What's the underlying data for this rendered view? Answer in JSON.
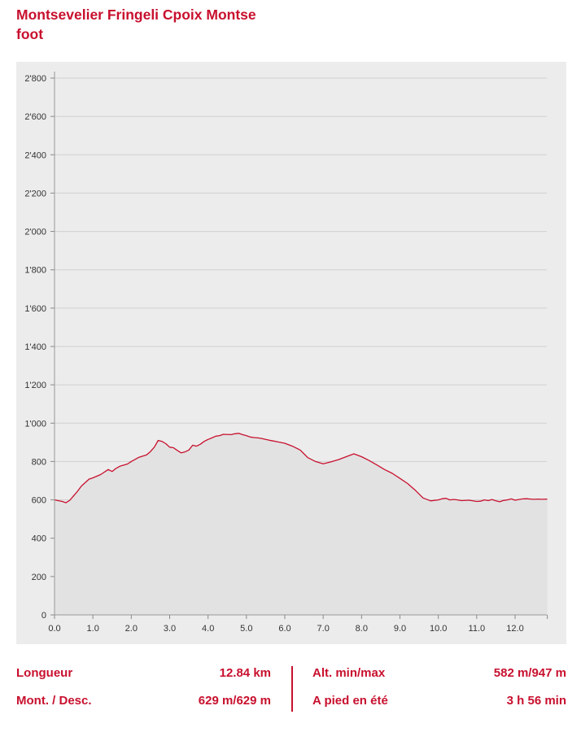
{
  "title": {
    "line1": "Montsevelier Fringeli Cpoix Montse",
    "line2": "foot"
  },
  "colors": {
    "accent": "#c8102e",
    "panel": "#ececec",
    "area_fill": "#e2e2e2",
    "grid": "#d0d0d0"
  },
  "chart_data": {
    "type": "area",
    "xlabel": "",
    "ylabel": "",
    "xlim": [
      0,
      12.84
    ],
    "ylim": [
      0,
      2800
    ],
    "grid": true,
    "x_ticks": [
      "0.0",
      "1.0",
      "2.0",
      "3.0",
      "4.0",
      "5.0",
      "6.0",
      "7.0",
      "8.0",
      "9.0",
      "10.0",
      "11.0",
      "12.0"
    ],
    "y_ticks": [
      "0",
      "200",
      "400",
      "600",
      "800",
      "1'000",
      "1'200",
      "1'400",
      "1'600",
      "1'800",
      "2'000",
      "2'200",
      "2'400",
      "2'600",
      "2'800"
    ],
    "series": [
      {
        "x": [
          0.0,
          0.2,
          0.3,
          0.4,
          0.5,
          0.6,
          0.7,
          0.8,
          0.9,
          1.0,
          1.2,
          1.4,
          1.5,
          1.6,
          1.7,
          1.9,
          2.0,
          2.2,
          2.4,
          2.5,
          2.6,
          2.7,
          2.8,
          2.9,
          3.0,
          3.1,
          3.2,
          3.3,
          3.4,
          3.5,
          3.6,
          3.7,
          3.8,
          3.9,
          4.0,
          4.1,
          4.2,
          4.3,
          4.4,
          4.6,
          4.7,
          4.8,
          4.9,
          5.0,
          5.1,
          5.2,
          5.3,
          5.4,
          5.5,
          5.6,
          5.7,
          5.8,
          6.0,
          6.2,
          6.4,
          6.5,
          6.6,
          6.8,
          7.0,
          7.2,
          7.4,
          7.6,
          7.8,
          8.0,
          8.2,
          8.4,
          8.6,
          8.8,
          9.0,
          9.2,
          9.4,
          9.6,
          9.8,
          10.0,
          10.1,
          10.2,
          10.3,
          10.4,
          10.5,
          10.6,
          10.8,
          11.0,
          11.1,
          11.2,
          11.3,
          11.4,
          11.5,
          11.6,
          11.7,
          11.8,
          11.9,
          12.0,
          12.1,
          12.2,
          12.3,
          12.4,
          12.5,
          12.6,
          12.7,
          12.8,
          12.84
        ],
        "y": [
          600,
          592,
          585,
          598,
          622,
          645,
          672,
          690,
          708,
          715,
          732,
          758,
          748,
          764,
          775,
          787,
          800,
          822,
          835,
          852,
          875,
          910,
          905,
          893,
          875,
          872,
          858,
          845,
          850,
          860,
          885,
          880,
          890,
          905,
          915,
          923,
          932,
          935,
          942,
          940,
          945,
          947,
          940,
          935,
          928,
          925,
          923,
          920,
          915,
          911,
          907,
          903,
          895,
          880,
          860,
          840,
          820,
          800,
          788,
          798,
          810,
          825,
          840,
          825,
          805,
          782,
          758,
          738,
          712,
          685,
          650,
          610,
          595,
          600,
          606,
          608,
          600,
          602,
          600,
          596,
          598,
          592,
          593,
          600,
          596,
          602,
          595,
          590,
          597,
          600,
          605,
          598,
          602,
          605,
          606,
          604,
          603,
          604,
          603,
          604,
          603
        ]
      }
    ]
  },
  "stats": {
    "length_label": "Longueur",
    "length_value": "12.84 km",
    "ascent_label": "Mont. / Desc.",
    "ascent_value": "629 m/629 m",
    "alt_label": "Alt. min/max",
    "alt_value": "582 m/947 m",
    "time_label": "A pied en été",
    "time_value": "3 h 56 min"
  }
}
